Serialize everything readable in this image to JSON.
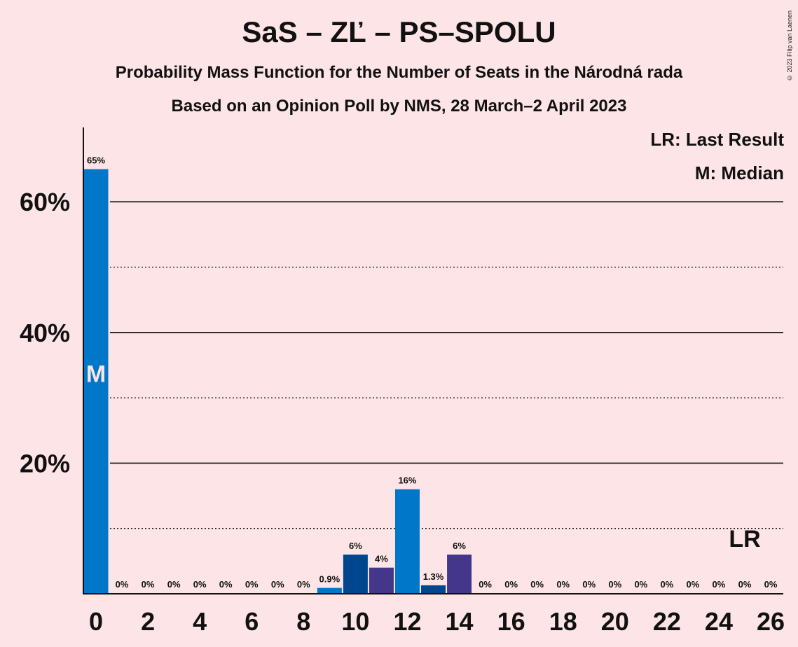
{
  "title": "SaS – ZĽ – PS–SPOLU",
  "subtitle1": "Probability Mass Function for the Number of Seats in the Národná rada",
  "subtitle2": "Based on an Opinion Poll by NMS, 28 March–2 April 2023",
  "copyright": "© 2023 Filip van Laenen",
  "legend": {
    "last_result": "LR: Last Result",
    "median": "M: Median"
  },
  "colors": {
    "background": "#fde4e6",
    "bar_primary": "#0077c8",
    "bar_dark": "#00468e",
    "bar_purple": "#44368a",
    "median_mark": "#fde4e6"
  },
  "chart_data": {
    "type": "bar",
    "x": [
      0,
      1,
      2,
      3,
      4,
      5,
      6,
      7,
      8,
      9,
      10,
      11,
      12,
      13,
      14,
      15,
      16,
      17,
      18,
      19,
      20,
      21,
      22,
      23,
      24,
      25,
      26
    ],
    "values": [
      65,
      0,
      0,
      0,
      0,
      0,
      0,
      0,
      0,
      0.9,
      6,
      4,
      16,
      1.3,
      6,
      0,
      0,
      0,
      0,
      0,
      0,
      0,
      0,
      0,
      0,
      0,
      0
    ],
    "value_labels": [
      "65%",
      "0%",
      "0%",
      "0%",
      "0%",
      "0%",
      "0%",
      "0%",
      "0%",
      "0.9%",
      "6%",
      "4%",
      "16%",
      "1.3%",
      "6%",
      "0%",
      "0%",
      "0%",
      "0%",
      "0%",
      "0%",
      "0%",
      "0%",
      "0%",
      "0%",
      "0%",
      "0%"
    ],
    "bar_colors": [
      "#0077c8",
      "#0077c8",
      "#0077c8",
      "#0077c8",
      "#0077c8",
      "#0077c8",
      "#0077c8",
      "#0077c8",
      "#0077c8",
      "#0077c8",
      "#00468e",
      "#44368a",
      "#0077c8",
      "#00468e",
      "#44368a",
      "#0077c8",
      "#0077c8",
      "#0077c8",
      "#0077c8",
      "#0077c8",
      "#0077c8",
      "#0077c8",
      "#0077c8",
      "#0077c8",
      "#0077c8",
      "#0077c8",
      "#0077c8"
    ],
    "x_ticks": [
      0,
      2,
      4,
      6,
      8,
      10,
      12,
      14,
      16,
      18,
      20,
      22,
      24,
      26
    ],
    "x_tick_labels": [
      "0",
      "2",
      "4",
      "6",
      "8",
      "10",
      "12",
      "14",
      "16",
      "18",
      "20",
      "22",
      "24",
      "26"
    ],
    "y_ticks": [
      20,
      40,
      60
    ],
    "y_tick_labels": [
      "20%",
      "40%",
      "60%"
    ],
    "y_minor_gridlines": [
      10,
      30,
      50
    ],
    "ylim": [
      0,
      71.3
    ],
    "median_seat": 0,
    "median_label": "M",
    "last_result_seat": 25,
    "last_result_label": "LR"
  }
}
